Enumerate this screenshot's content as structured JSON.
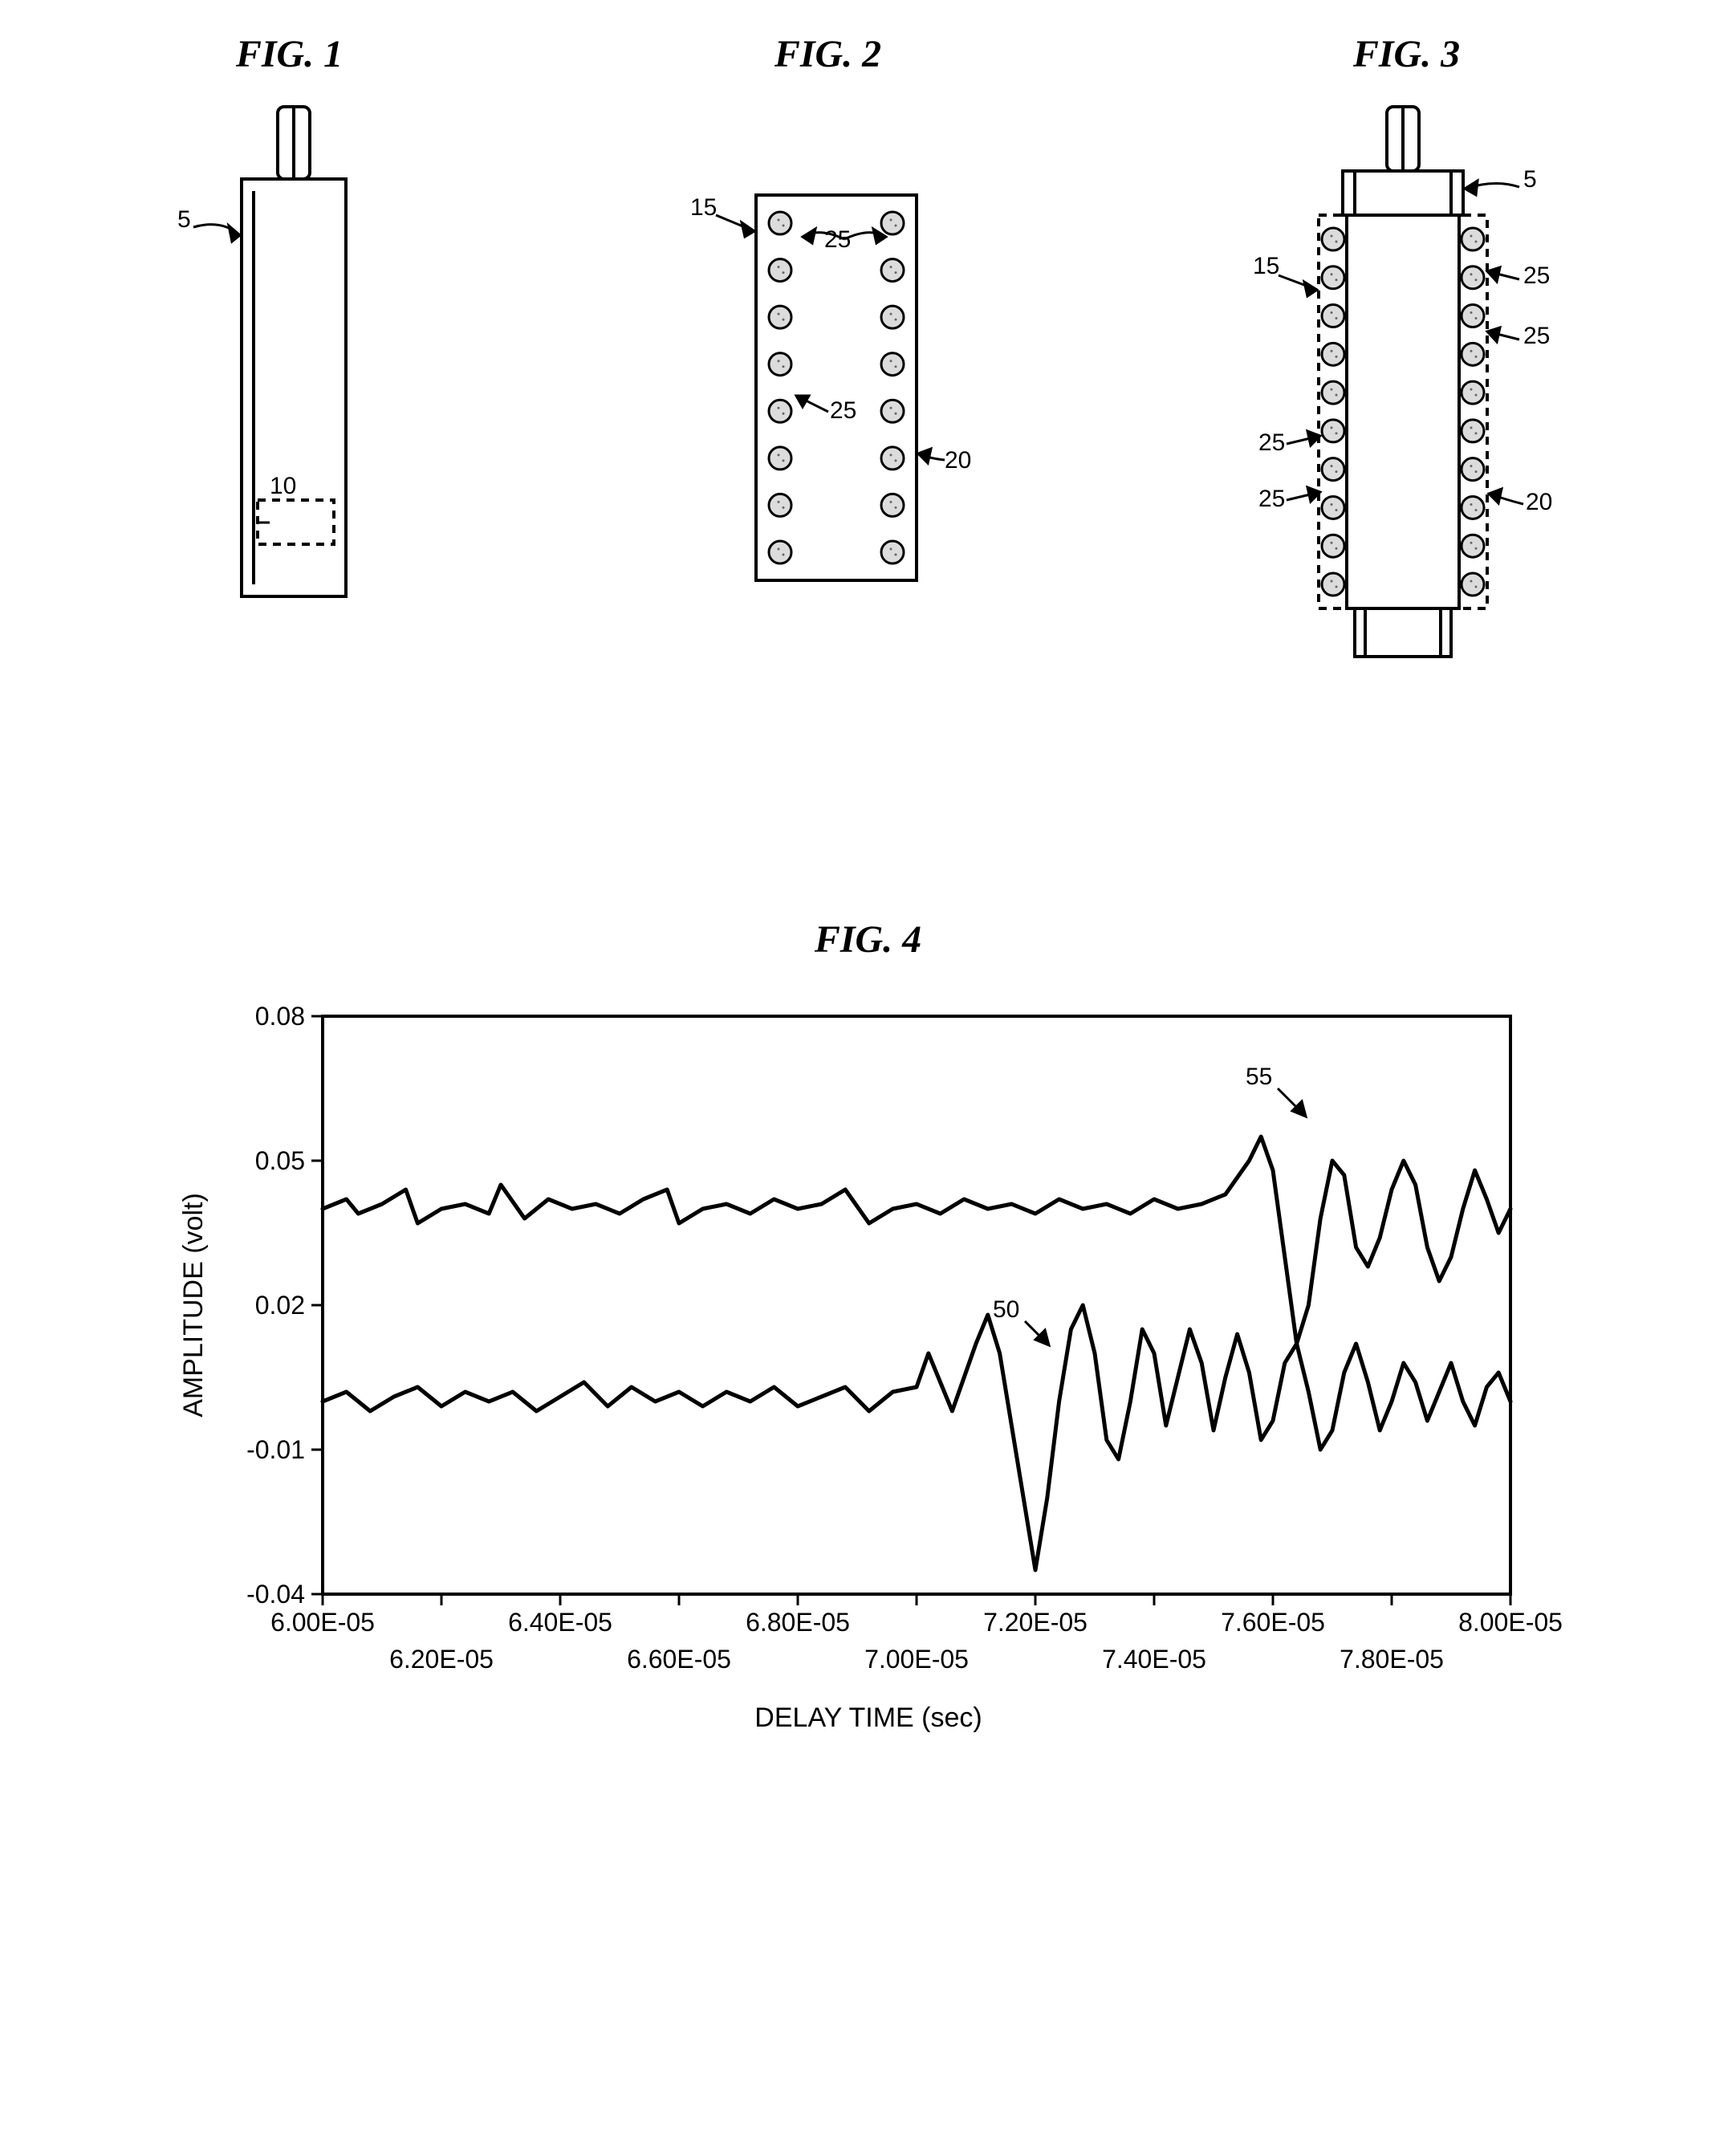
{
  "figures": {
    "fig1": {
      "title": "FIG. 1",
      "callouts": {
        "body": "5",
        "sensor_box": "10"
      }
    },
    "fig2": {
      "title": "FIG. 2",
      "callouts": {
        "frame": "15",
        "side": "20",
        "ball_a": "25",
        "ball_b": "25"
      }
    },
    "fig3": {
      "title": "FIG. 3",
      "callouts": {
        "body": "5",
        "frame": "15",
        "side": "20",
        "ball_r1": "25",
        "ball_r2": "25",
        "ball_l1": "25",
        "ball_l2": "25"
      }
    },
    "fig4": {
      "title": "FIG. 4",
      "xlabel": "DELAY TIME (sec)",
      "ylabel": "AMPLITUDE (volt)",
      "x_ticks": [
        "6.00E-05",
        "6.20E-05",
        "6.40E-05",
        "6.60E-05",
        "6.80E-05",
        "7.00E-05",
        "7.20E-05",
        "7.40E-05",
        "7.60E-05",
        "7.80E-05",
        "8.00E-05"
      ],
      "y_ticks": [
        "-0.04",
        "-0.01",
        "0.02",
        "0.05",
        "0.08"
      ],
      "xlim": [
        6e-05,
        8e-05
      ],
      "ylim": [
        -0.04,
        0.08
      ],
      "line_color": "#000000",
      "line_width_upper": 5,
      "line_width_lower": 5,
      "background": "#ffffff",
      "axis_color": "#000000",
      "callouts": {
        "upper": "55",
        "lower": "50"
      },
      "series_upper": {
        "baseline": 0.04,
        "points": [
          [
            6e-05,
            0.04
          ],
          [
            6.04e-05,
            0.042
          ],
          [
            6.06e-05,
            0.039
          ],
          [
            6.1e-05,
            0.041
          ],
          [
            6.14e-05,
            0.044
          ],
          [
            6.16e-05,
            0.037
          ],
          [
            6.2e-05,
            0.04
          ],
          [
            6.24e-05,
            0.041
          ],
          [
            6.28e-05,
            0.039
          ],
          [
            6.3e-05,
            0.045
          ],
          [
            6.34e-05,
            0.038
          ],
          [
            6.38e-05,
            0.042
          ],
          [
            6.42e-05,
            0.04
          ],
          [
            6.46e-05,
            0.041
          ],
          [
            6.5e-05,
            0.039
          ],
          [
            6.54e-05,
            0.042
          ],
          [
            6.58e-05,
            0.044
          ],
          [
            6.6e-05,
            0.037
          ],
          [
            6.64e-05,
            0.04
          ],
          [
            6.68e-05,
            0.041
          ],
          [
            6.72e-05,
            0.039
          ],
          [
            6.76e-05,
            0.042
          ],
          [
            6.8e-05,
            0.04
          ],
          [
            6.84e-05,
            0.041
          ],
          [
            6.88e-05,
            0.044
          ],
          [
            6.92e-05,
            0.037
          ],
          [
            6.96e-05,
            0.04
          ],
          [
            7e-05,
            0.041
          ],
          [
            7.04e-05,
            0.039
          ],
          [
            7.08e-05,
            0.042
          ],
          [
            7.12e-05,
            0.04
          ],
          [
            7.16e-05,
            0.041
          ],
          [
            7.2e-05,
            0.039
          ],
          [
            7.24e-05,
            0.042
          ],
          [
            7.28e-05,
            0.04
          ],
          [
            7.32e-05,
            0.041
          ],
          [
            7.36e-05,
            0.039
          ],
          [
            7.4e-05,
            0.042
          ],
          [
            7.44e-05,
            0.04
          ],
          [
            7.48e-05,
            0.041
          ],
          [
            7.52e-05,
            0.043
          ],
          [
            7.56e-05,
            0.05
          ],
          [
            7.58e-05,
            0.055
          ],
          [
            7.6e-05,
            0.048
          ],
          [
            7.62e-05,
            0.03
          ],
          [
            7.64e-05,
            0.012
          ],
          [
            7.66e-05,
            0.02
          ],
          [
            7.68e-05,
            0.038
          ],
          [
            7.7e-05,
            0.05
          ],
          [
            7.72e-05,
            0.047
          ],
          [
            7.74e-05,
            0.032
          ],
          [
            7.76e-05,
            0.028
          ],
          [
            7.78e-05,
            0.034
          ],
          [
            7.8e-05,
            0.044
          ],
          [
            7.82e-05,
            0.05
          ],
          [
            7.84e-05,
            0.045
          ],
          [
            7.86e-05,
            0.032
          ],
          [
            7.88e-05,
            0.025
          ],
          [
            7.9e-05,
            0.03
          ],
          [
            7.92e-05,
            0.04
          ],
          [
            7.94e-05,
            0.048
          ],
          [
            7.96e-05,
            0.042
          ],
          [
            7.98e-05,
            0.035
          ],
          [
            8e-05,
            0.04
          ]
        ]
      },
      "series_lower": {
        "baseline": 0.0,
        "points": [
          [
            6e-05,
            0.0
          ],
          [
            6.04e-05,
            0.002
          ],
          [
            6.08e-05,
            -0.002
          ],
          [
            6.12e-05,
            0.001
          ],
          [
            6.16e-05,
            0.003
          ],
          [
            6.2e-05,
            -0.001
          ],
          [
            6.24e-05,
            0.002
          ],
          [
            6.28e-05,
            0.0
          ],
          [
            6.32e-05,
            0.002
          ],
          [
            6.36e-05,
            -0.002
          ],
          [
            6.4e-05,
            0.001
          ],
          [
            6.44e-05,
            0.004
          ],
          [
            6.48e-05,
            -0.001
          ],
          [
            6.52e-05,
            0.003
          ],
          [
            6.56e-05,
            0.0
          ],
          [
            6.6e-05,
            0.002
          ],
          [
            6.64e-05,
            -0.001
          ],
          [
            6.68e-05,
            0.002
          ],
          [
            6.72e-05,
            0.0
          ],
          [
            6.76e-05,
            0.003
          ],
          [
            6.8e-05,
            -0.001
          ],
          [
            6.84e-05,
            0.001
          ],
          [
            6.88e-05,
            0.003
          ],
          [
            6.92e-05,
            -0.002
          ],
          [
            6.96e-05,
            0.002
          ],
          [
            7e-05,
            0.003
          ],
          [
            7.02e-05,
            0.01
          ],
          [
            7.04e-05,
            0.004
          ],
          [
            7.06e-05,
            -0.002
          ],
          [
            7.08e-05,
            0.005
          ],
          [
            7.1e-05,
            0.012
          ],
          [
            7.12e-05,
            0.018
          ],
          [
            7.14e-05,
            0.01
          ],
          [
            7.16e-05,
            -0.005
          ],
          [
            7.18e-05,
            -0.02
          ],
          [
            7.2e-05,
            -0.035
          ],
          [
            7.22e-05,
            -0.02
          ],
          [
            7.24e-05,
            0.0
          ],
          [
            7.26e-05,
            0.015
          ],
          [
            7.28e-05,
            0.02
          ],
          [
            7.3e-05,
            0.01
          ],
          [
            7.32e-05,
            -0.008
          ],
          [
            7.34e-05,
            -0.012
          ],
          [
            7.36e-05,
            0.0
          ],
          [
            7.38e-05,
            0.015
          ],
          [
            7.4e-05,
            0.01
          ],
          [
            7.42e-05,
            -0.005
          ],
          [
            7.44e-05,
            0.005
          ],
          [
            7.46e-05,
            0.015
          ],
          [
            7.48e-05,
            0.008
          ],
          [
            7.5e-05,
            -0.006
          ],
          [
            7.52e-05,
            0.005
          ],
          [
            7.54e-05,
            0.014
          ],
          [
            7.56e-05,
            0.006
          ],
          [
            7.58e-05,
            -0.008
          ],
          [
            7.6e-05,
            -0.004
          ],
          [
            7.62e-05,
            0.008
          ],
          [
            7.64e-05,
            0.012
          ],
          [
            7.66e-05,
            0.002
          ],
          [
            7.68e-05,
            -0.01
          ],
          [
            7.7e-05,
            -0.006
          ],
          [
            7.72e-05,
            0.006
          ],
          [
            7.74e-05,
            0.012
          ],
          [
            7.76e-05,
            0.004
          ],
          [
            7.78e-05,
            -0.006
          ],
          [
            7.8e-05,
            0.0
          ],
          [
            7.82e-05,
            0.008
          ],
          [
            7.84e-05,
            0.004
          ],
          [
            7.86e-05,
            -0.004
          ],
          [
            7.88e-05,
            0.002
          ],
          [
            7.9e-05,
            0.008
          ],
          [
            7.92e-05,
            0.0
          ],
          [
            7.94e-05,
            -0.005
          ],
          [
            7.96e-05,
            0.003
          ],
          [
            7.98e-05,
            0.006
          ],
          [
            8e-05,
            0.0
          ]
        ]
      }
    }
  },
  "style": {
    "stroke": "#000000",
    "stroke_width": 4,
    "ball_fill": "#dcdcdc",
    "ball_radius": 14
  }
}
